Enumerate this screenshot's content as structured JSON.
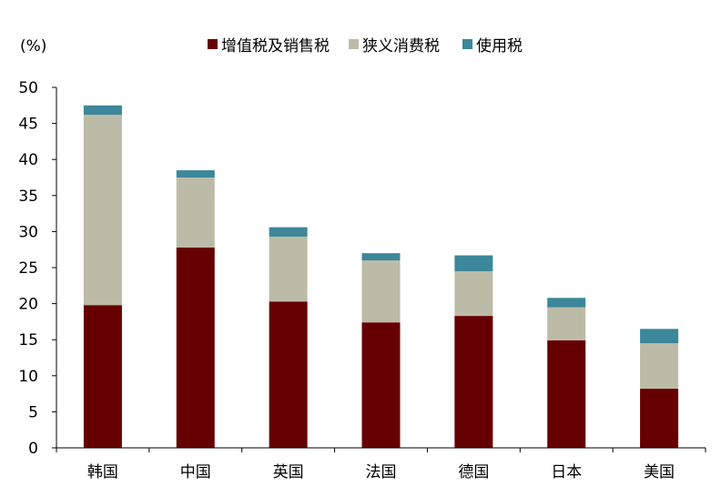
{
  "chart_data": {
    "type": "bar",
    "stacked": true,
    "unit_label": "(%)",
    "categories": [
      "韩国",
      "中国",
      "英国",
      "法国",
      "德国",
      "日本",
      "美国"
    ],
    "series": [
      {
        "name": "增值税及销售税",
        "color": "#660000",
        "values": [
          19.8,
          27.8,
          20.3,
          17.4,
          18.3,
          14.9,
          8.2
        ]
      },
      {
        "name": "狭义消费税",
        "color": "#bbbba8",
        "values": [
          26.4,
          9.7,
          9.0,
          8.6,
          6.2,
          4.6,
          6.3
        ]
      },
      {
        "name": "使用税",
        "color": "#3c8799",
        "values": [
          1.3,
          1.0,
          1.3,
          1.0,
          2.2,
          1.3,
          2.0
        ]
      }
    ],
    "ylim": [
      0,
      50
    ],
    "yticks": [
      0,
      5,
      10,
      15,
      20,
      25,
      30,
      35,
      40,
      45,
      50
    ],
    "grid": false,
    "legend_position": "top"
  }
}
